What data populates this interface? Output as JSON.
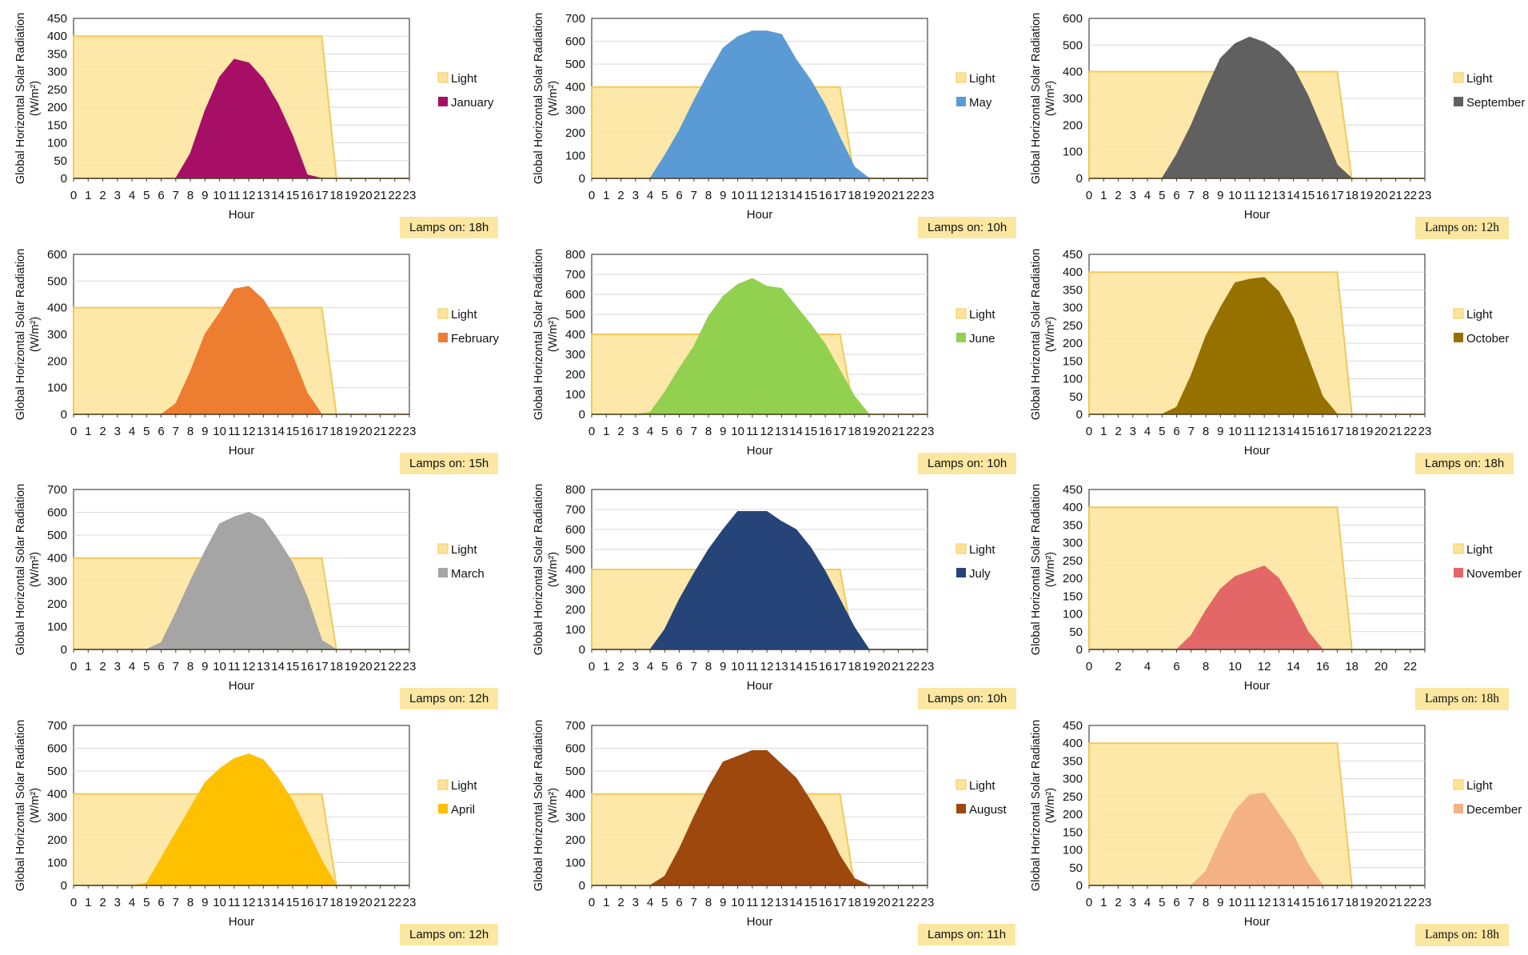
{
  "colors": {
    "light_fill": "#fde49a",
    "light_line": "#f4c85a",
    "grid": "#d9d9d9",
    "axis": "#404040"
  },
  "shared": {
    "ylabel": "Global Horizontal Solar Radiation",
    "yunit": "(W/m²)",
    "xlabel": "Hour",
    "light_label": "Light"
  },
  "chart_data": [
    {
      "type": "area",
      "month": "January",
      "color": "#a70f67",
      "ylim": [
        0,
        450
      ],
      "yticks": [
        0,
        50,
        100,
        150,
        200,
        250,
        300,
        350,
        400,
        450
      ],
      "x": [
        0,
        1,
        2,
        3,
        4,
        5,
        6,
        7,
        8,
        9,
        10,
        11,
        12,
        13,
        14,
        15,
        16,
        17,
        18,
        19,
        20,
        21,
        22,
        23
      ],
      "xticks": [
        0,
        1,
        2,
        3,
        4,
        5,
        6,
        7,
        8,
        9,
        10,
        11,
        12,
        13,
        14,
        15,
        16,
        17,
        18,
        19,
        20,
        21,
        22,
        23
      ],
      "light": [
        [
          0,
          400
        ],
        [
          17,
          400
        ],
        [
          18,
          0
        ],
        [
          23,
          0
        ]
      ],
      "values": [
        0,
        0,
        0,
        0,
        0,
        0,
        0,
        0,
        70,
        190,
        285,
        335,
        325,
        280,
        210,
        120,
        10,
        0,
        0,
        0,
        0,
        0,
        0,
        0
      ],
      "lamps_label": "Lamps on: 18h"
    },
    {
      "type": "area",
      "month": "May",
      "color": "#5b9bd5",
      "ylim": [
        0,
        700
      ],
      "yticks": [
        0,
        100,
        200,
        300,
        400,
        500,
        600,
        700
      ],
      "x": [
        0,
        1,
        2,
        3,
        4,
        5,
        6,
        7,
        8,
        9,
        10,
        11,
        12,
        13,
        14,
        15,
        16,
        17,
        18,
        19,
        20,
        21,
        22,
        23
      ],
      "xticks": [
        0,
        1,
        2,
        3,
        4,
        5,
        6,
        7,
        8,
        9,
        10,
        11,
        12,
        13,
        14,
        15,
        16,
        17,
        18,
        19,
        20,
        21,
        22,
        23
      ],
      "light": [
        [
          0,
          400
        ],
        [
          17,
          400
        ],
        [
          18,
          0
        ],
        [
          23,
          0
        ]
      ],
      "values": [
        0,
        0,
        0,
        0,
        0,
        100,
        210,
        340,
        460,
        570,
        620,
        645,
        645,
        630,
        520,
        430,
        320,
        180,
        50,
        0,
        0,
        0,
        0,
        0
      ],
      "lamps_label": "Lamps on: 10h"
    },
    {
      "type": "area",
      "month": "September",
      "color": "#606060",
      "ylim": [
        0,
        600
      ],
      "yticks": [
        0,
        100,
        200,
        300,
        400,
        500,
        600
      ],
      "x": [
        0,
        1,
        2,
        3,
        4,
        5,
        6,
        7,
        8,
        9,
        10,
        11,
        12,
        13,
        14,
        15,
        16,
        17,
        18,
        19,
        20,
        21,
        22,
        23
      ],
      "xticks": [
        0,
        1,
        2,
        3,
        4,
        5,
        6,
        7,
        8,
        9,
        10,
        11,
        12,
        13,
        14,
        15,
        16,
        17,
        18,
        19,
        20,
        21,
        22,
        23
      ],
      "light": [
        [
          0,
          400
        ],
        [
          17,
          400
        ],
        [
          18,
          0
        ],
        [
          23,
          0
        ]
      ],
      "values": [
        0,
        0,
        0,
        0,
        0,
        0,
        90,
        200,
        330,
        450,
        505,
        530,
        510,
        475,
        415,
        310,
        180,
        50,
        0,
        0,
        0,
        0,
        0,
        0
      ],
      "lamps_label": "Lamps on: 12h"
    },
    {
      "type": "area",
      "month": "February",
      "color": "#ed7d31",
      "ylim": [
        0,
        600
      ],
      "yticks": [
        0,
        100,
        200,
        300,
        400,
        500,
        600
      ],
      "x": [
        0,
        1,
        2,
        3,
        4,
        5,
        6,
        7,
        8,
        9,
        10,
        11,
        12,
        13,
        14,
        15,
        16,
        17,
        18,
        19,
        20,
        21,
        22,
        23
      ],
      "xticks": [
        0,
        1,
        2,
        3,
        4,
        5,
        6,
        7,
        8,
        9,
        10,
        11,
        12,
        13,
        14,
        15,
        16,
        17,
        18,
        19,
        20,
        21,
        22,
        23
      ],
      "light": [
        [
          0,
          400
        ],
        [
          17,
          400
        ],
        [
          18,
          0
        ],
        [
          23,
          0
        ]
      ],
      "values": [
        0,
        0,
        0,
        0,
        0,
        0,
        0,
        40,
        160,
        300,
        380,
        470,
        480,
        430,
        340,
        220,
        80,
        0,
        0,
        0,
        0,
        0,
        0,
        0
      ],
      "lamps_label": "Lamps on: 15h"
    },
    {
      "type": "area",
      "month": "June",
      "color": "#92d050",
      "ylim": [
        0,
        800
      ],
      "yticks": [
        0,
        100,
        200,
        300,
        400,
        500,
        600,
        700,
        800
      ],
      "x": [
        0,
        1,
        2,
        3,
        4,
        5,
        6,
        7,
        8,
        9,
        10,
        11,
        12,
        13,
        14,
        15,
        16,
        17,
        18,
        19,
        20,
        21,
        22,
        23
      ],
      "xticks": [
        0,
        1,
        2,
        3,
        4,
        5,
        6,
        7,
        8,
        9,
        10,
        11,
        12,
        13,
        14,
        15,
        16,
        17,
        18,
        19,
        20,
        21,
        22,
        23
      ],
      "light": [
        [
          0,
          400
        ],
        [
          17,
          400
        ],
        [
          18,
          0
        ],
        [
          23,
          0
        ]
      ],
      "values": [
        0,
        0,
        0,
        0,
        10,
        110,
        230,
        340,
        490,
        590,
        650,
        680,
        640,
        630,
        540,
        450,
        350,
        220,
        90,
        0,
        0,
        0,
        0,
        0
      ],
      "lamps_label": "Lamps on: 10h"
    },
    {
      "type": "area",
      "month": "October",
      "color": "#977100",
      "ylim": [
        0,
        450
      ],
      "yticks": [
        0,
        50,
        100,
        150,
        200,
        250,
        300,
        350,
        400,
        450
      ],
      "x": [
        0,
        1,
        2,
        3,
        4,
        5,
        6,
        7,
        8,
        9,
        10,
        11,
        12,
        13,
        14,
        15,
        16,
        17,
        18,
        19,
        20,
        21,
        22,
        23
      ],
      "xticks": [
        0,
        1,
        2,
        3,
        4,
        5,
        6,
        7,
        8,
        9,
        10,
        11,
        12,
        13,
        14,
        15,
        16,
        17,
        18,
        19,
        20,
        21,
        22,
        23
      ],
      "light": [
        [
          0,
          400
        ],
        [
          17,
          400
        ],
        [
          18,
          0
        ],
        [
          23,
          0
        ]
      ],
      "values": [
        0,
        0,
        0,
        0,
        0,
        0,
        20,
        110,
        220,
        300,
        370,
        380,
        385,
        345,
        270,
        160,
        50,
        0,
        0,
        0,
        0,
        0,
        0,
        0
      ],
      "lamps_label": "Lamps on: 18h"
    },
    {
      "type": "area",
      "month": "March",
      "color": "#a5a5a5",
      "ylim": [
        0,
        700
      ],
      "yticks": [
        0,
        100,
        200,
        300,
        400,
        500,
        600,
        700
      ],
      "x": [
        0,
        1,
        2,
        3,
        4,
        5,
        6,
        7,
        8,
        9,
        10,
        11,
        12,
        13,
        14,
        15,
        16,
        17,
        18,
        19,
        20,
        21,
        22,
        23
      ],
      "xticks": [
        0,
        1,
        2,
        3,
        4,
        5,
        6,
        7,
        8,
        9,
        10,
        11,
        12,
        13,
        14,
        15,
        16,
        17,
        18,
        19,
        20,
        21,
        22,
        23
      ],
      "light": [
        [
          0,
          400
        ],
        [
          17,
          400
        ],
        [
          18,
          0
        ],
        [
          23,
          0
        ]
      ],
      "values": [
        0,
        0,
        0,
        0,
        0,
        0,
        30,
        160,
        300,
        430,
        550,
        580,
        600,
        570,
        480,
        380,
        230,
        40,
        0,
        0,
        0,
        0,
        0,
        0
      ],
      "lamps_label": "Lamps on: 12h"
    },
    {
      "type": "area",
      "month": "July",
      "color": "#264478",
      "ylim": [
        0,
        800
      ],
      "yticks": [
        0,
        100,
        200,
        300,
        400,
        500,
        600,
        700,
        800
      ],
      "x": [
        0,
        1,
        2,
        3,
        4,
        5,
        6,
        7,
        8,
        9,
        10,
        11,
        12,
        13,
        14,
        15,
        16,
        17,
        18,
        19,
        20,
        21,
        22,
        23
      ],
      "xticks": [
        0,
        1,
        2,
        3,
        4,
        5,
        6,
        7,
        8,
        9,
        10,
        11,
        12,
        13,
        14,
        15,
        16,
        17,
        18,
        19,
        20,
        21,
        22,
        23
      ],
      "light": [
        [
          0,
          400
        ],
        [
          17,
          400
        ],
        [
          18,
          0
        ],
        [
          23,
          0
        ]
      ],
      "values": [
        0,
        0,
        0,
        0,
        0,
        100,
        250,
        380,
        500,
        600,
        690,
        690,
        690,
        640,
        600,
        510,
        390,
        250,
        110,
        0,
        0,
        0,
        0,
        0
      ],
      "lamps_label": "Lamps on: 10h"
    },
    {
      "type": "area",
      "month": "November",
      "color": "#e46767",
      "ylim": [
        0,
        450
      ],
      "yticks": [
        0,
        50,
        100,
        150,
        200,
        250,
        300,
        350,
        400,
        450
      ],
      "x": [
        0,
        1,
        2,
        3,
        4,
        5,
        6,
        7,
        8,
        9,
        10,
        11,
        12,
        13,
        14,
        15,
        16,
        17,
        18,
        19,
        20,
        21,
        22,
        23
      ],
      "xticks": [
        0,
        2,
        4,
        6,
        8,
        10,
        12,
        14,
        16,
        18,
        20,
        22
      ],
      "light": [
        [
          0,
          400
        ],
        [
          17,
          400
        ],
        [
          18,
          0
        ],
        [
          23,
          0
        ]
      ],
      "values": [
        0,
        0,
        0,
        0,
        0,
        0,
        0,
        40,
        110,
        170,
        205,
        220,
        235,
        200,
        130,
        50,
        0,
        0,
        0,
        0,
        0,
        0,
        0,
        0
      ],
      "lamps_label": "Lamps on: 18h"
    },
    {
      "type": "area",
      "month": "April",
      "color": "#ffc000",
      "ylim": [
        0,
        700
      ],
      "yticks": [
        0,
        100,
        200,
        300,
        400,
        500,
        600,
        700
      ],
      "x": [
        0,
        1,
        2,
        3,
        4,
        5,
        6,
        7,
        8,
        9,
        10,
        11,
        12,
        13,
        14,
        15,
        16,
        17,
        18,
        19,
        20,
        21,
        22,
        23
      ],
      "xticks": [
        0,
        1,
        2,
        3,
        4,
        5,
        6,
        7,
        8,
        9,
        10,
        11,
        12,
        13,
        14,
        15,
        16,
        17,
        18,
        19,
        20,
        21,
        22,
        23
      ],
      "light": [
        [
          0,
          400
        ],
        [
          17,
          400
        ],
        [
          18,
          0
        ],
        [
          23,
          0
        ]
      ],
      "values": [
        0,
        0,
        0,
        0,
        0,
        10,
        120,
        230,
        340,
        450,
        510,
        555,
        575,
        550,
        470,
        370,
        240,
        110,
        0,
        0,
        0,
        0,
        0,
        0
      ],
      "lamps_label": "Lamps on: 12h"
    },
    {
      "type": "area",
      "month": "August",
      "color": "#9e480e",
      "ylim": [
        0,
        700
      ],
      "yticks": [
        0,
        100,
        200,
        300,
        400,
        500,
        600,
        700
      ],
      "x": [
        0,
        1,
        2,
        3,
        4,
        5,
        6,
        7,
        8,
        9,
        10,
        11,
        12,
        13,
        14,
        15,
        16,
        17,
        18,
        19,
        20,
        21,
        22,
        23
      ],
      "xticks": [
        0,
        1,
        2,
        3,
        4,
        5,
        6,
        7,
        8,
        9,
        10,
        11,
        12,
        13,
        14,
        15,
        16,
        17,
        18,
        19,
        20,
        21,
        22,
        23
      ],
      "light": [
        [
          0,
          400
        ],
        [
          17,
          400
        ],
        [
          18,
          0
        ],
        [
          23,
          0
        ]
      ],
      "values": [
        0,
        0,
        0,
        0,
        0,
        40,
        160,
        300,
        430,
        540,
        565,
        590,
        590,
        530,
        470,
        370,
        260,
        130,
        30,
        0,
        0,
        0,
        0,
        0
      ],
      "lamps_label": "Lamps on: 11h"
    },
    {
      "type": "area",
      "month": "December",
      "color": "#f4b183",
      "ylim": [
        0,
        450
      ],
      "yticks": [
        0,
        50,
        100,
        150,
        200,
        250,
        300,
        350,
        400,
        450
      ],
      "x": [
        0,
        1,
        2,
        3,
        4,
        5,
        6,
        7,
        8,
        9,
        10,
        11,
        12,
        13,
        14,
        15,
        16,
        17,
        18,
        19,
        20,
        21,
        22,
        23
      ],
      "xticks": [
        0,
        1,
        2,
        3,
        4,
        5,
        6,
        7,
        8,
        9,
        10,
        11,
        12,
        13,
        14,
        15,
        16,
        17,
        18,
        19,
        20,
        21,
        22,
        23
      ],
      "light": [
        [
          0,
          400
        ],
        [
          17,
          400
        ],
        [
          18,
          0
        ],
        [
          23,
          0
        ]
      ],
      "values": [
        0,
        0,
        0,
        0,
        0,
        0,
        0,
        0,
        40,
        130,
        210,
        255,
        260,
        200,
        140,
        60,
        0,
        0,
        0,
        0,
        0,
        0,
        0,
        0
      ],
      "lamps_label": "Lamps on: 18h"
    }
  ]
}
